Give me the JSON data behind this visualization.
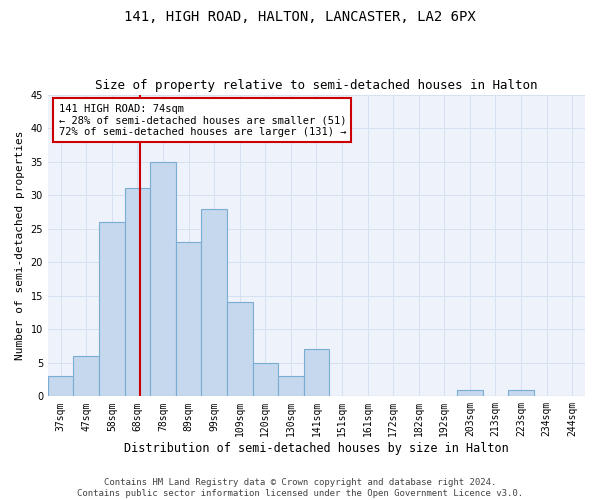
{
  "title": "141, HIGH ROAD, HALTON, LANCASTER, LA2 6PX",
  "subtitle": "Size of property relative to semi-detached houses in Halton",
  "xlabel": "Distribution of semi-detached houses by size in Halton",
  "ylabel": "Number of semi-detached properties",
  "footer_line1": "Contains HM Land Registry data © Crown copyright and database right 2024.",
  "footer_line2": "Contains public sector information licensed under the Open Government Licence v3.0.",
  "categories": [
    "37sqm",
    "47sqm",
    "58sqm",
    "68sqm",
    "78sqm",
    "89sqm",
    "99sqm",
    "109sqm",
    "120sqm",
    "130sqm",
    "141sqm",
    "151sqm",
    "161sqm",
    "172sqm",
    "182sqm",
    "192sqm",
    "203sqm",
    "213sqm",
    "223sqm",
    "234sqm",
    "244sqm"
  ],
  "values": [
    3,
    6,
    26,
    31,
    35,
    23,
    28,
    14,
    5,
    3,
    7,
    0,
    0,
    0,
    0,
    0,
    1,
    0,
    1,
    0,
    0
  ],
  "bar_color": "#c5d8ed",
  "bar_edge_color": "#7aadd4",
  "vline_color": "#cc0000",
  "vline_x_index": 3.6,
  "annotation_text_line1": "141 HIGH ROAD: 74sqm",
  "annotation_text_line2": "← 28% of semi-detached houses are smaller (51)",
  "annotation_text_line3": "72% of semi-detached houses are larger (131) →",
  "annotation_box_color": "#ffffff",
  "annotation_box_edge_color": "#cc0000",
  "ylim": [
    0,
    45
  ],
  "yticks": [
    0,
    5,
    10,
    15,
    20,
    25,
    30,
    35,
    40,
    45
  ],
  "grid_color": "#d5e0f0",
  "background_color": "#eef2fa",
  "title_fontsize": 10,
  "subtitle_fontsize": 9,
  "xlabel_fontsize": 8.5,
  "ylabel_fontsize": 8,
  "tick_fontsize": 7,
  "annotation_fontsize": 7.5,
  "footer_fontsize": 6.5
}
